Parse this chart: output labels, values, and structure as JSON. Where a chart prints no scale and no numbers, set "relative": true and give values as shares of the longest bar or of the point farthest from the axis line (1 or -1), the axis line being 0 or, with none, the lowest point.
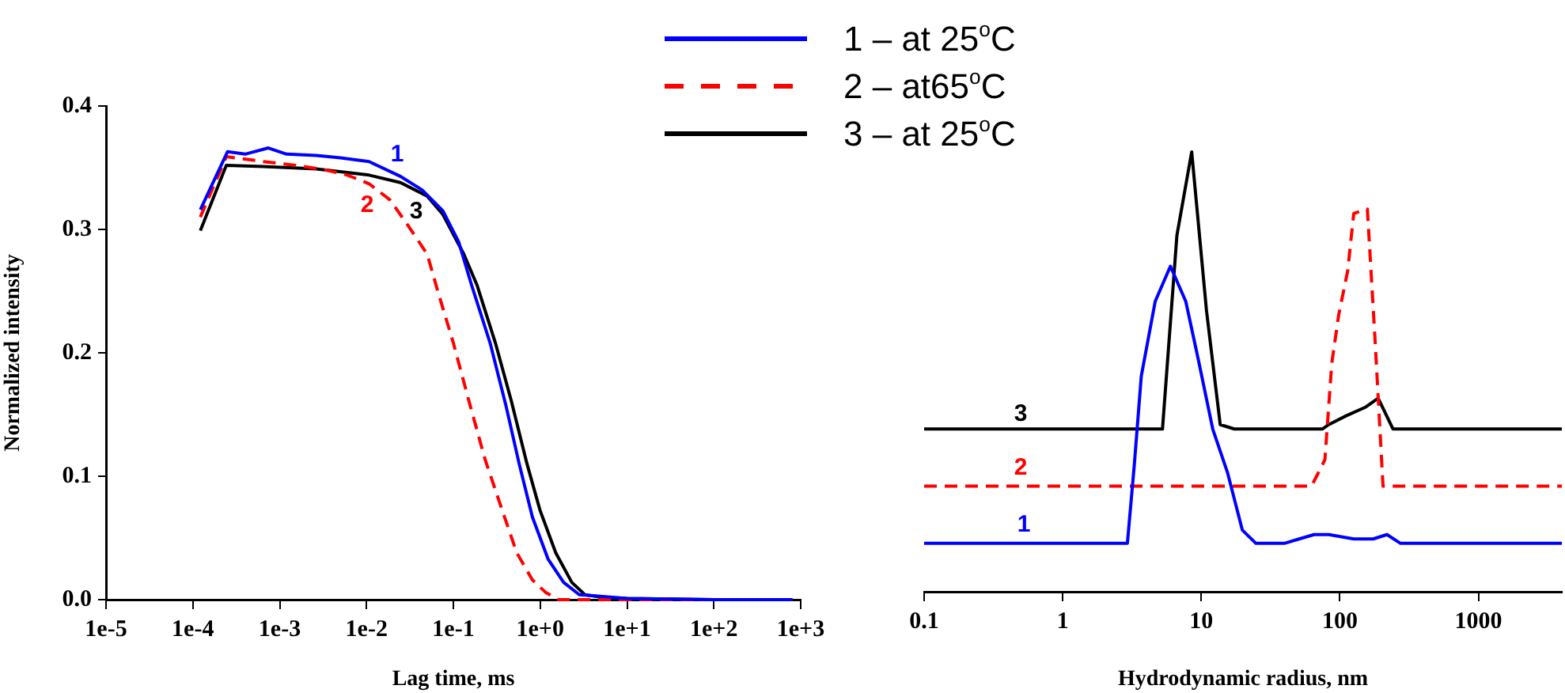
{
  "chart_data": [
    {
      "type": "line",
      "xlabel": "Lag time, ms",
      "ylabel": "Normalized intensity",
      "log": "x",
      "legend": "top right",
      "xlim": [
        1e-05,
        1000
      ],
      "xticks": [
        {
          "value": 1e-05,
          "label": "1e-5"
        },
        {
          "value": 0.0001,
          "label": "1e-4"
        },
        {
          "value": 0.001,
          "label": "1e-3"
        },
        {
          "value": 0.01,
          "label": "1e-2"
        },
        {
          "value": 0.1,
          "label": "1e-1"
        },
        {
          "value": 1,
          "label": "1e+0"
        },
        {
          "value": 10,
          "label": "1e+1"
        },
        {
          "value": 100,
          "label": "1e+2"
        },
        {
          "value": 1000,
          "label": "1e+3"
        }
      ],
      "ylim": [
        0,
        0.4
      ],
      "yticks": [
        {
          "value": 0,
          "label": "0.0"
        },
        0.1,
        0.2,
        0.3,
        0.4
      ],
      "series": [
        {
          "name": "1 – at 25$^{o}$C",
          "color": "#0000ff",
          "x": [
            0.000122,
            0.000251,
            0.0004,
            0.000741,
            0.0012,
            0.00263,
            0.005,
            0.0107,
            0.0245,
            0.0437,
            0.0759,
            0.115,
            0.162,
            0.265,
            0.404,
            0.573,
            0.813,
            1.23,
            1.86,
            2.82,
            4.37,
            10,
            100,
            800
          ],
          "values": [
            0.316,
            0.363,
            0.361,
            0.366,
            0.361,
            0.36,
            0.358,
            0.355,
            0.343,
            0.332,
            0.315,
            0.29,
            0.255,
            0.208,
            0.157,
            0.11,
            0.067,
            0.033,
            0.014,
            0.004,
            0.003,
            0.001,
            0.0,
            0.0
          ]
        },
        {
          "name": "2 – at65$^{o}$C",
          "color": "#ff0000",
          "line_style": "dashed",
          "x": [
            0.000122,
            0.000243,
            0.000646,
            0.00151,
            0.00347,
            0.00603,
            0.0107,
            0.0186,
            0.0282,
            0.05,
            0.0661,
            0.1,
            0.151,
            0.231,
            0.351,
            0.537,
            0.813,
            1.15,
            1.62,
            10,
            800
          ],
          "values": [
            0.31,
            0.359,
            0.355,
            0.352,
            0.348,
            0.344,
            0.337,
            0.324,
            0.306,
            0.28,
            0.25,
            0.208,
            0.161,
            0.114,
            0.076,
            0.038,
            0.016,
            0.006,
            0.0,
            0.0,
            0.0
          ]
        },
        {
          "name": "3 – at 25$^{o}$C",
          "color": "#000000",
          "x": [
            0.000122,
            0.000243,
            0.000646,
            0.00263,
            0.0107,
            0.0245,
            0.05,
            0.0759,
            0.132,
            0.187,
            0.305,
            0.465,
            0.705,
            1.0,
            1.51,
            2.31,
            3.27,
            5.01,
            10,
            100,
            800
          ],
          "values": [
            0.299,
            0.352,
            0.351,
            0.349,
            0.344,
            0.338,
            0.327,
            0.312,
            0.28,
            0.255,
            0.208,
            0.161,
            0.11,
            0.072,
            0.038,
            0.014,
            0.004,
            0.002,
            0.001,
            0.0,
            0.0
          ]
        }
      ],
      "annotations": [
        "1",
        "2",
        "3"
      ]
    },
    {
      "type": "line",
      "xlabel": "Hydrodynamic radius, nm",
      "log": "x",
      "relative": true,
      "xlim": [
        0.1,
        4000
      ],
      "xticks": [
        0.1,
        1,
        10,
        100,
        1000
      ],
      "series": [
        {
          "color": "#0000ff",
          "x": [
            0.1,
            2.93,
            3.29,
            3.69,
            4.65,
            5.99,
            7.73,
            9.49,
            12.1,
            15.5,
            19.8,
            24.8,
            39.8,
            50.9,
            65.2,
            83.2,
            126,
            174,
            219,
            274,
            336,
            4000
          ],
          "values": [
            0.11,
            0.11,
            0.29,
            0.49,
            0.66,
            0.74,
            0.66,
            0.53,
            0.37,
            0.27,
            0.14,
            0.11,
            0.11,
            0.12,
            0.13,
            0.13,
            0.12,
            0.12,
            0.13,
            0.11,
            0.11,
            0.11
          ]
        },
        {
          "color": "#ff0000",
          "line_style": "dashed",
          "x": [
            0.1,
            62.5,
            78.0,
            87.5,
            98.2,
            114,
            126,
            158,
            179,
            205,
            4000
          ],
          "values": [
            0.24,
            0.24,
            0.3,
            0.52,
            0.63,
            0.73,
            0.86,
            0.87,
            0.58,
            0.24,
            0.24
          ]
        },
        {
          "color": "#000000",
          "x": [
            0.1,
            5.25,
            6.67,
            8.53,
            10.9,
            13.7,
            17.3,
            74.8,
            83.2,
            111,
            154,
            189,
            242,
            297,
            4000
          ],
          "values": [
            0.37,
            0.37,
            0.81,
            1.0,
            0.64,
            0.38,
            0.37,
            0.37,
            0.38,
            0.4,
            0.42,
            0.44,
            0.37,
            0.37,
            0.37
          ]
        }
      ],
      "annotations": [
        "1",
        "2",
        "3"
      ]
    }
  ]
}
